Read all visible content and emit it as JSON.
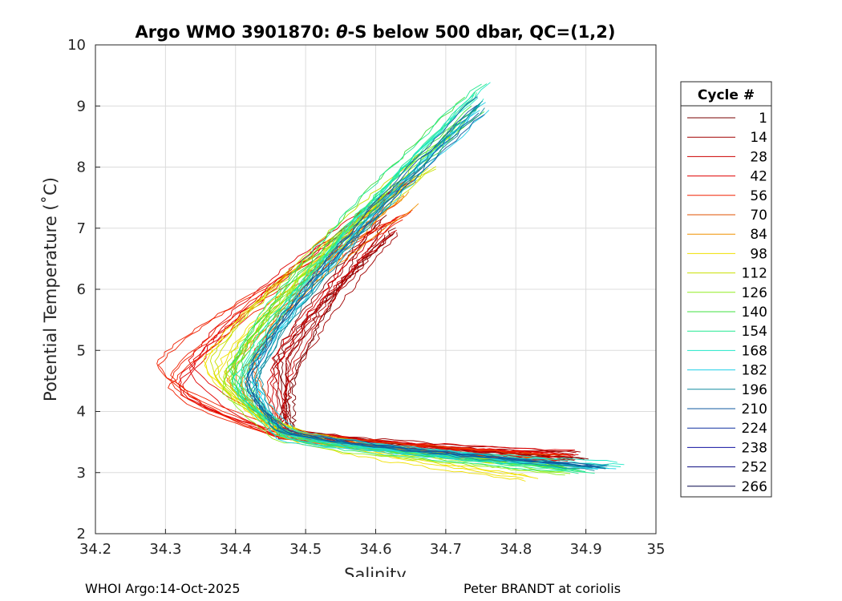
{
  "chart_data": {
    "type": "line",
    "title_prefix": "Argo WMO 3901870: ",
    "title_symbol": "θ",
    "title_suffix": "-S below 500 dbar,  QC=(1,2)",
    "xlabel": "Salinity",
    "ylabel": "Potential Temperature (˚C)",
    "xlim": [
      34.2,
      35
    ],
    "ylim": [
      2,
      10
    ],
    "xticks": [
      "34.2",
      "34.3",
      "34.4",
      "34.5",
      "34.6",
      "34.7",
      "34.8",
      "34.9",
      "35"
    ],
    "yticks": [
      "2",
      "3",
      "4",
      "5",
      "6",
      "7",
      "8",
      "9",
      "10"
    ],
    "grid": true,
    "legend_title": "Cycle #",
    "legend_position": "outside-right",
    "series": [
      {
        "name": "1",
        "color": "#7a0000",
        "salinity_at_5C": 34.47,
        "max": [
          34.62,
          7.3
        ],
        "deep": [
          34.89,
          3.25
        ]
      },
      {
        "name": "14",
        "color": "#a00000",
        "salinity_at_5C": 34.465,
        "max": [
          34.62,
          7.2
        ],
        "deep": [
          34.88,
          3.28
        ]
      },
      {
        "name": "28",
        "color": "#cc0000",
        "salinity_at_5C": 34.46,
        "max": [
          34.62,
          7.35
        ],
        "deep": [
          34.87,
          3.25
        ]
      },
      {
        "name": "42",
        "color": "#e00000",
        "salinity_at_5C": 34.33,
        "max": [
          34.65,
          7.95
        ],
        "deep": [
          34.88,
          3.3
        ]
      },
      {
        "name": "56",
        "color": "#f02000",
        "salinity_at_5C": 34.3,
        "max": [
          34.65,
          7.5
        ],
        "deep": [
          34.87,
          3.25
        ]
      },
      {
        "name": "70",
        "color": "#e05000",
        "salinity_at_5C": 34.42,
        "max": [
          34.62,
          7.7
        ],
        "deep": [
          34.86,
          3.22
        ]
      },
      {
        "name": "84",
        "color": "#f09000",
        "salinity_at_5C": 34.4,
        "max": [
          34.65,
          7.7
        ],
        "deep": [
          34.86,
          3.15
        ]
      },
      {
        "name": "98",
        "color": "#f0e000",
        "salinity_at_5C": 34.37,
        "max": [
          34.65,
          8.0
        ],
        "deep": [
          34.82,
          2.88
        ]
      },
      {
        "name": "112",
        "color": "#c8e000",
        "salinity_at_5C": 34.38,
        "max": [
          34.68,
          8.3
        ],
        "deep": [
          34.88,
          3.1
        ]
      },
      {
        "name": "126",
        "color": "#90ee20",
        "salinity_at_5C": 34.39,
        "max": [
          34.72,
          8.8
        ],
        "deep": [
          34.88,
          3.0
        ]
      },
      {
        "name": "140",
        "color": "#40e040",
        "salinity_at_5C": 34.395,
        "max": [
          34.74,
          9.3
        ],
        "deep": [
          34.88,
          3.05
        ]
      },
      {
        "name": "154",
        "color": "#20e890",
        "salinity_at_5C": 34.405,
        "max": [
          34.75,
          9.5
        ],
        "deep": [
          34.9,
          3.0
        ]
      },
      {
        "name": "168",
        "color": "#20e8c8",
        "salinity_at_5C": 34.41,
        "max": [
          34.75,
          9.4
        ],
        "deep": [
          34.94,
          3.12
        ]
      },
      {
        "name": "182",
        "color": "#20d0e8",
        "salinity_at_5C": 34.42,
        "max": [
          34.75,
          9.2
        ],
        "deep": [
          34.93,
          3.1
        ]
      },
      {
        "name": "196",
        "color": "#108ca0",
        "salinity_at_5C": 34.42,
        "max": [
          34.75,
          9.2
        ],
        "deep": [
          34.92,
          3.1
        ]
      },
      {
        "name": "210",
        "color": "#105aa0",
        "salinity_at_5C": 34.42,
        "max": [
          34.75,
          9.2
        ],
        "deep": [
          34.92,
          3.1
        ]
      },
      {
        "name": "224",
        "color": "#1030a0",
        "salinity_at_5C": 34.42,
        "max": [
          34.75,
          9.2
        ],
        "deep": [
          34.92,
          3.1
        ]
      },
      {
        "name": "238",
        "color": "#1010a0",
        "salinity_at_5C": 34.42,
        "max": [
          34.75,
          9.2
        ],
        "deep": [
          34.92,
          3.1
        ]
      },
      {
        "name": "252",
        "color": "#0a0a80",
        "salinity_at_5C": 34.42,
        "max": [
          34.75,
          9.2
        ],
        "deep": [
          34.92,
          3.1
        ]
      },
      {
        "name": "266",
        "color": "#05054a",
        "salinity_at_5C": 34.42,
        "max": [
          34.75,
          9.2
        ],
        "deep": [
          34.92,
          3.1
        ]
      }
    ]
  },
  "footer": {
    "left": "WHOI Argo:14-Oct-2025",
    "right": "Peter BRANDT at coriolis"
  }
}
